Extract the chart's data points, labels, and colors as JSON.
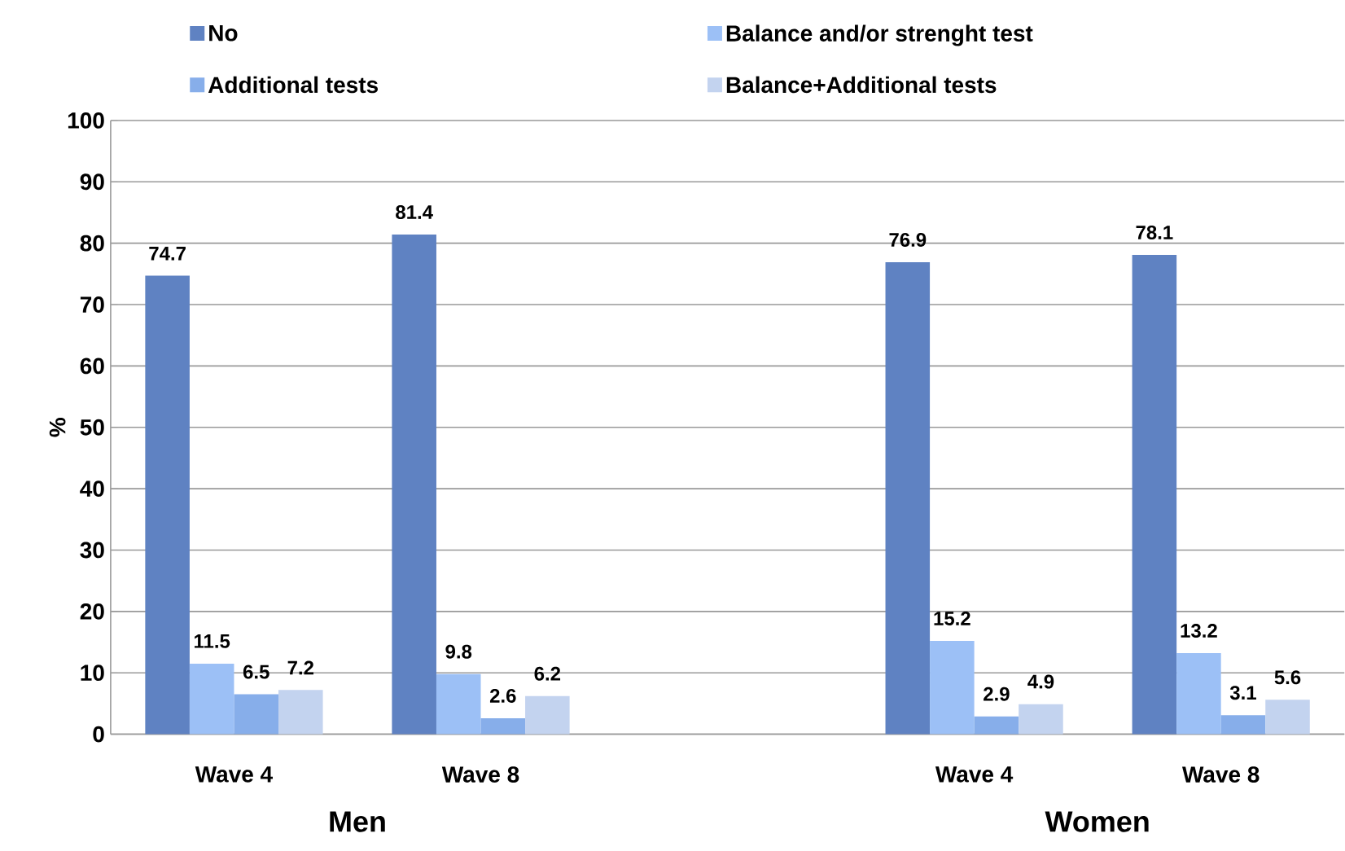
{
  "chart_data": {
    "type": "bar",
    "ylabel": "%",
    "categories": [
      "Wave 4",
      "Wave 8",
      null,
      "Wave 4",
      "Wave 8"
    ],
    "series": [
      {
        "name": "No",
        "color": "#5f82c2",
        "values": [
          74.7,
          81.4,
          null,
          76.9,
          78.1
        ]
      },
      {
        "name": "Balance and/or strenght test",
        "color": "#9cc0f6",
        "values": [
          11.5,
          9.8,
          null,
          15.2,
          13.2
        ]
      },
      {
        "name": "Additional tests",
        "color": "#87aeea",
        "values": [
          6.5,
          2.6,
          null,
          2.9,
          3.1
        ]
      },
      {
        "name": "Balance+Additional tests",
        "color": "#c3d3ef",
        "values": [
          7.2,
          6.2,
          null,
          4.9,
          5.6
        ]
      }
    ],
    "ylim": [
      0,
      100
    ],
    "yticks": [
      0,
      10,
      20,
      30,
      40,
      50,
      60,
      70,
      80,
      90,
      100
    ],
    "grid": "y",
    "legend": "top",
    "data_labels": true,
    "annotations": [
      "Men",
      "Women"
    ]
  }
}
